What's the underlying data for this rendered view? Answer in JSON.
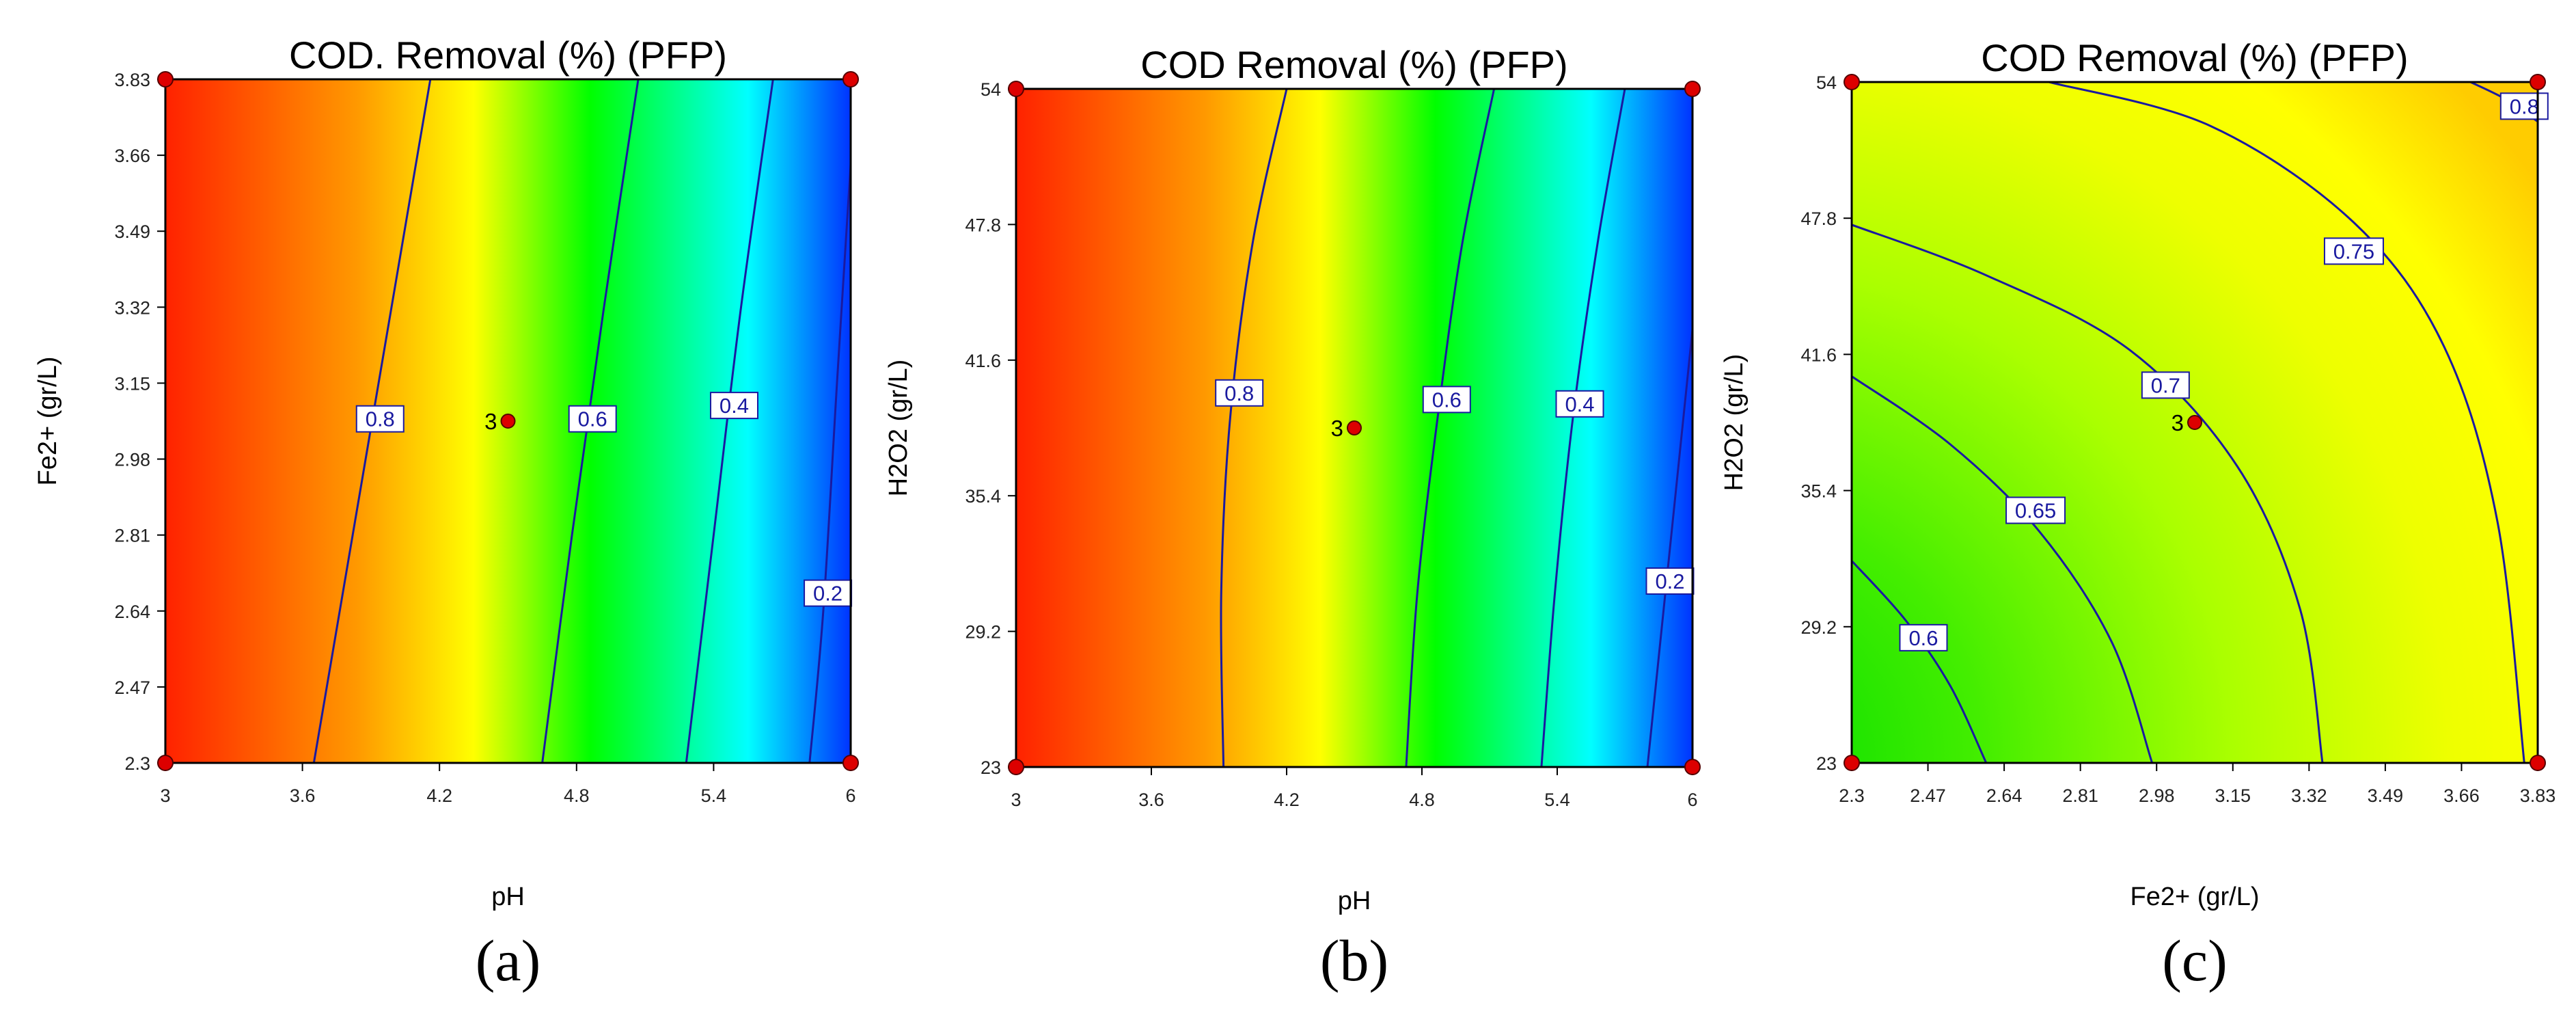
{
  "chart_data": [
    {
      "type": "contour",
      "title": "COD. Removal (%) (PFP)",
      "xlabel": "pH",
      "ylabel": "Fe2+ (gr/L)",
      "panel_label": "(a)",
      "xlim": [
        3,
        6
      ],
      "ylim": [
        2.3,
        3.83
      ],
      "x_ticks": [
        "3",
        "3.6",
        "4.2",
        "4.8",
        "5.4",
        "6"
      ],
      "y_ticks": [
        "2.3",
        "2.47",
        "2.64",
        "2.81",
        "2.98",
        "3.15",
        "3.32",
        "3.49",
        "3.66",
        "3.83"
      ],
      "colormap": [
        "#ff2200",
        "#ff9900",
        "#ffff00",
        "#00ff00",
        "#00ffff",
        "#0033ff"
      ],
      "contours": [
        {
          "label": "0.8",
          "label_at": [
            3.94,
            3.07
          ],
          "points": [
            [
              3.65,
              2.3
            ],
            [
              3.82,
              2.81
            ],
            [
              3.99,
              3.32
            ],
            [
              4.16,
              3.83
            ]
          ]
        },
        {
          "label": "0.6",
          "label_at": [
            4.87,
            3.07
          ],
          "points": [
            [
              4.65,
              2.3
            ],
            [
              4.78,
              2.81
            ],
            [
              4.92,
              3.32
            ],
            [
              5.07,
              3.83
            ]
          ]
        },
        {
          "label": "0.4",
          "label_at": [
            5.49,
            3.1
          ],
          "points": [
            [
              5.28,
              2.3
            ],
            [
              5.4,
              2.81
            ],
            [
              5.52,
              3.32
            ],
            [
              5.66,
              3.83
            ]
          ]
        },
        {
          "label": "0.2",
          "label_at": [
            5.9,
            2.68
          ],
          "points": [
            [
              5.82,
              2.3
            ],
            [
              5.88,
              2.64
            ],
            [
              5.94,
              3.15
            ],
            [
              6.0,
              3.64
            ]
          ]
        }
      ],
      "design_points": [
        [
          3,
          2.3
        ],
        [
          6,
          2.3
        ],
        [
          3,
          3.83
        ],
        [
          6,
          3.83
        ]
      ],
      "center_point": {
        "x": 4.5,
        "y": 3.065,
        "label": "3"
      }
    },
    {
      "type": "contour",
      "title": "COD Removal (%) (PFP)",
      "xlabel": "pH",
      "ylabel": "H2O2 (gr/L)",
      "panel_label": "(b)",
      "xlim": [
        3,
        6
      ],
      "ylim": [
        23,
        54
      ],
      "x_ticks": [
        "3",
        "3.6",
        "4.2",
        "4.8",
        "5.4",
        "6"
      ],
      "y_ticks": [
        "23",
        "29.2",
        "35.4",
        "41.6",
        "47.8",
        "54"
      ],
      "colormap": [
        "#ff2200",
        "#ff9900",
        "#ffff00",
        "#00ff00",
        "#00ffff",
        "#0033ff"
      ],
      "contours": [
        {
          "label": "0.8",
          "label_at": [
            3.99,
            40.1
          ],
          "points": [
            [
              3.92,
              23
            ],
            [
              3.91,
              31
            ],
            [
              3.95,
              39
            ],
            [
              4.05,
              47
            ],
            [
              4.2,
              54
            ]
          ]
        },
        {
          "label": "0.6",
          "label_at": [
            4.91,
            39.8
          ],
          "points": [
            [
              4.73,
              23
            ],
            [
              4.78,
              31
            ],
            [
              4.87,
              39
            ],
            [
              4.98,
              47
            ],
            [
              5.12,
              54
            ]
          ]
        },
        {
          "label": "0.4",
          "label_at": [
            5.5,
            39.6
          ],
          "points": [
            [
              5.33,
              23
            ],
            [
              5.39,
              31
            ],
            [
              5.47,
              39
            ],
            [
              5.58,
              47
            ],
            [
              5.7,
              54
            ]
          ]
        },
        {
          "label": "0.2",
          "label_at": [
            5.9,
            31.5
          ],
          "points": [
            [
              5.8,
              23
            ],
            [
              5.86,
              29
            ],
            [
              5.94,
              37
            ],
            [
              6.0,
              43
            ]
          ]
        }
      ],
      "design_points": [
        [
          3,
          23
        ],
        [
          6,
          23
        ],
        [
          3,
          54
        ],
        [
          6,
          54
        ]
      ],
      "center_point": {
        "x": 4.5,
        "y": 38.5,
        "label": "3"
      }
    },
    {
      "type": "contour",
      "title": "COD Removal (%) (PFP)",
      "xlabel": "Fe2+ (gr/L)",
      "ylabel": "H2O2 (gr/L)",
      "panel_label": "(c)",
      "xlim": [
        2.3,
        3.83
      ],
      "ylim": [
        23,
        54
      ],
      "x_ticks": [
        "2.3",
        "2.47",
        "2.64",
        "2.81",
        "2.98",
        "3.15",
        "3.32",
        "3.49",
        "3.66",
        "3.83"
      ],
      "y_ticks": [
        "23",
        "29.2",
        "35.4",
        "41.6",
        "47.8",
        "54"
      ],
      "colormap": [
        "#00e000",
        "#66ee00",
        "#ccff00",
        "#ffff00",
        "#ffcc00"
      ],
      "contours": [
        {
          "label": "0.6",
          "label_at": [
            2.46,
            28.7
          ],
          "points": [
            [
              2.3,
              32.2
            ],
            [
              2.42,
              29.5
            ],
            [
              2.52,
              26.5
            ],
            [
              2.6,
              23
            ]
          ]
        },
        {
          "label": "0.65",
          "label_at": [
            2.71,
            34.5
          ],
          "points": [
            [
              2.3,
              40.6
            ],
            [
              2.52,
              37.5
            ],
            [
              2.72,
              33.5
            ],
            [
              2.88,
              28.5
            ],
            [
              2.97,
              23
            ]
          ]
        },
        {
          "label": "0.7",
          "label_at": [
            3.0,
            40.2
          ],
          "points": [
            [
              2.3,
              47.5
            ],
            [
              2.6,
              45.2
            ],
            [
              2.92,
              41.8
            ],
            [
              3.16,
              36.5
            ],
            [
              3.3,
              30
            ],
            [
              3.35,
              23
            ]
          ]
        },
        {
          "label": "0.75",
          "label_at": [
            3.42,
            46.3
          ],
          "points": [
            [
              2.74,
              54
            ],
            [
              3.1,
              52
            ],
            [
              3.42,
              47.6
            ],
            [
              3.62,
              42
            ],
            [
              3.74,
              34
            ],
            [
              3.8,
              23
            ]
          ]
        },
        {
          "label": "0.8",
          "label_at": [
            3.8,
            52.9
          ],
          "points": [
            [
              3.68,
              54
            ],
            [
              3.76,
              53.2
            ],
            [
              3.83,
              52.2
            ]
          ]
        }
      ],
      "design_points": [
        [
          2.3,
          23
        ],
        [
          3.83,
          23
        ],
        [
          2.3,
          54
        ],
        [
          3.83,
          54
        ]
      ],
      "center_point": {
        "x": 3.065,
        "y": 38.5,
        "label": "3"
      }
    }
  ]
}
